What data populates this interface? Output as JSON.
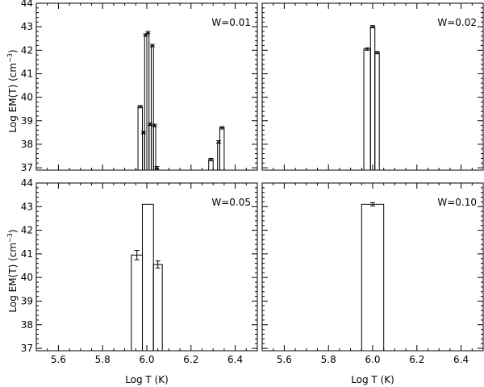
{
  "figure": {
    "ylabel": "Log EM(T) (cm",
    "ylabel_sup": "−3",
    "ylabel_close": ")",
    "xlabel": "Log T (K)"
  },
  "chart_data": [
    {
      "type": "histogram",
      "label": "W=0.01",
      "xlim": [
        5.5,
        6.5
      ],
      "ylim": [
        36.9,
        44.0
      ],
      "xticks": [
        5.6,
        5.8,
        6.0,
        6.2,
        6.4
      ],
      "yticks": [
        37,
        38,
        39,
        40,
        41,
        42,
        43,
        44
      ],
      "tick_labels_x": false,
      "tick_labels_y": true,
      "bins": [
        {
          "x0": 5.96,
          "x1": 5.98,
          "y": 39.6,
          "err": 0.05
        },
        {
          "x0": 5.98,
          "x1": 5.99,
          "y": 38.5,
          "err": 0.05
        },
        {
          "x0": 5.99,
          "x1": 6.0,
          "y": 42.65,
          "err": 0.05
        },
        {
          "x0": 6.0,
          "x1": 6.01,
          "y": 42.75,
          "err": 0.05
        },
        {
          "x0": 6.01,
          "x1": 6.02,
          "y": 38.85,
          "err": 0.05
        },
        {
          "x0": 6.02,
          "x1": 6.03,
          "y": 42.2,
          "err": 0.05
        },
        {
          "x0": 6.03,
          "x1": 6.04,
          "y": 38.8,
          "err": 0.05
        },
        {
          "x0": 6.04,
          "x1": 6.05,
          "y": 37.0,
          "err": 0.05
        },
        {
          "x0": 6.28,
          "x1": 6.3,
          "y": 37.35,
          "err": 0.05
        },
        {
          "x0": 6.32,
          "x1": 6.33,
          "y": 38.1,
          "err": 0.05
        },
        {
          "x0": 6.33,
          "x1": 6.35,
          "y": 38.7,
          "err": 0.05
        }
      ]
    },
    {
      "type": "histogram",
      "label": "W=0.02",
      "xlim": [
        5.5,
        6.5
      ],
      "ylim": [
        36.9,
        44.0
      ],
      "xticks": [
        5.6,
        5.8,
        6.0,
        6.2,
        6.4
      ],
      "yticks": [
        37,
        38,
        39,
        40,
        41,
        42,
        43,
        44
      ],
      "tick_labels_x": false,
      "tick_labels_y": false,
      "bins": [
        {
          "x0": 5.96,
          "x1": 5.99,
          "y": 42.05,
          "err": 0.05
        },
        {
          "x0": 5.99,
          "x1": 6.01,
          "y": 43.0,
          "err": 0.05
        },
        {
          "x0": 6.01,
          "x1": 6.03,
          "y": 41.9,
          "err": 0.05
        }
      ]
    },
    {
      "type": "histogram",
      "label": "W=0.05",
      "xlim": [
        5.5,
        6.5
      ],
      "ylim": [
        36.9,
        44.0
      ],
      "xticks": [
        5.6,
        5.8,
        6.0,
        6.2,
        6.4
      ],
      "yticks": [
        37,
        38,
        39,
        40,
        41,
        42,
        43,
        44
      ],
      "tick_labels_x": true,
      "tick_labels_y": true,
      "bins": [
        {
          "x0": 5.93,
          "x1": 5.98,
          "y": 40.95,
          "err": 0.2
        },
        {
          "x0": 5.98,
          "x1": 6.03,
          "y": 43.1,
          "err": 0
        },
        {
          "x0": 6.03,
          "x1": 6.07,
          "y": 40.55,
          "err": 0.15
        }
      ]
    },
    {
      "type": "histogram",
      "label": "W=0.10",
      "xlim": [
        5.5,
        6.5
      ],
      "ylim": [
        36.9,
        44.0
      ],
      "xticks": [
        5.6,
        5.8,
        6.0,
        6.2,
        6.4
      ],
      "yticks": [
        37,
        38,
        39,
        40,
        41,
        42,
        43,
        44
      ],
      "tick_labels_x": true,
      "tick_labels_y": false,
      "bins": [
        {
          "x0": 5.95,
          "x1": 6.05,
          "y": 43.1,
          "err": 0.07
        }
      ]
    }
  ]
}
